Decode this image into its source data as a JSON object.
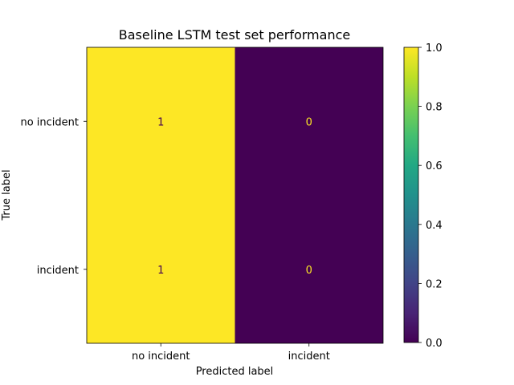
{
  "chart_data": {
    "type": "heatmap",
    "title": "Baseline LSTM test set performance",
    "xlabel": "Predicted label",
    "ylabel": "True label",
    "x_categories": [
      "no incident",
      "incident"
    ],
    "y_categories": [
      "no incident",
      "incident"
    ],
    "values": [
      [
        1,
        0
      ],
      [
        1,
        0
      ]
    ],
    "value_range": [
      0,
      1
    ],
    "colormap": "viridis",
    "colorbar": {
      "ticks": [
        "0.0",
        "0.2",
        "0.4",
        "0.6",
        "0.8",
        "1.0"
      ],
      "tick_values": [
        0.0,
        0.2,
        0.4,
        0.6,
        0.8,
        1.0
      ],
      "placement": "right"
    },
    "colors": {
      "high": "#fde725",
      "low": "#440154",
      "text_on_dark": "#fde725",
      "text_on_light": "#440154"
    }
  }
}
